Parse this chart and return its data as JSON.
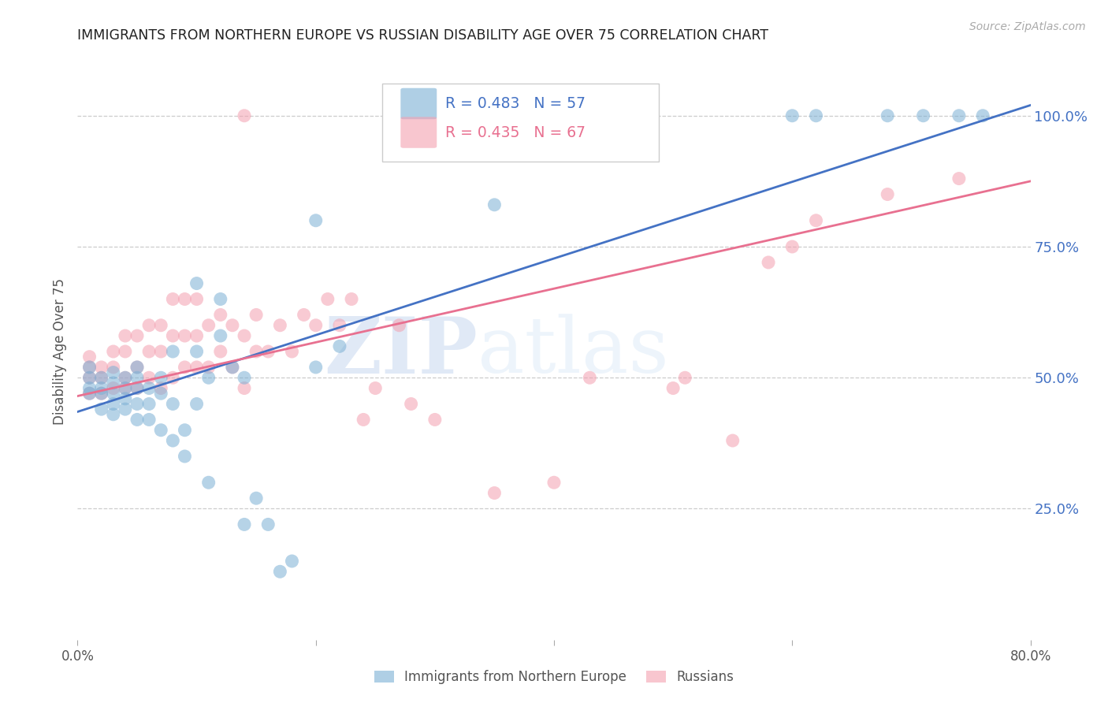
{
  "title": "IMMIGRANTS FROM NORTHERN EUROPE VS RUSSIAN DISABILITY AGE OVER 75 CORRELATION CHART",
  "source": "Source: ZipAtlas.com",
  "ylabel": "Disability Age Over 75",
  "ytick_labels": [
    "100.0%",
    "75.0%",
    "50.0%",
    "25.0%"
  ],
  "ytick_values": [
    1.0,
    0.75,
    0.5,
    0.25
  ],
  "xlim": [
    0.0,
    0.8
  ],
  "ylim": [
    0.0,
    1.1
  ],
  "blue_color": "#7BAFD4",
  "pink_color": "#F4A0B0",
  "blue_line_color": "#4472C4",
  "pink_line_color": "#E87090",
  "R_blue": 0.483,
  "N_blue": 57,
  "R_pink": 0.435,
  "N_pink": 67,
  "legend_label_blue": "Immigrants from Northern Europe",
  "legend_label_pink": "Russians",
  "watermark_zip": "ZIP",
  "watermark_atlas": "atlas",
  "blue_scatter_x": [
    0.01,
    0.01,
    0.01,
    0.01,
    0.02,
    0.02,
    0.02,
    0.02,
    0.03,
    0.03,
    0.03,
    0.03,
    0.03,
    0.04,
    0.04,
    0.04,
    0.04,
    0.05,
    0.05,
    0.05,
    0.05,
    0.05,
    0.06,
    0.06,
    0.06,
    0.07,
    0.07,
    0.07,
    0.08,
    0.08,
    0.08,
    0.09,
    0.09,
    0.1,
    0.1,
    0.1,
    0.11,
    0.11,
    0.12,
    0.12,
    0.13,
    0.14,
    0.14,
    0.15,
    0.16,
    0.17,
    0.18,
    0.2,
    0.2,
    0.22,
    0.35,
    0.6,
    0.62,
    0.68,
    0.71,
    0.74,
    0.76
  ],
  "blue_scatter_y": [
    0.47,
    0.48,
    0.5,
    0.52,
    0.44,
    0.47,
    0.48,
    0.5,
    0.43,
    0.45,
    0.47,
    0.49,
    0.51,
    0.44,
    0.46,
    0.48,
    0.5,
    0.42,
    0.45,
    0.48,
    0.5,
    0.52,
    0.42,
    0.45,
    0.48,
    0.4,
    0.47,
    0.5,
    0.38,
    0.45,
    0.55,
    0.35,
    0.4,
    0.45,
    0.55,
    0.68,
    0.3,
    0.5,
    0.58,
    0.65,
    0.52,
    0.22,
    0.5,
    0.27,
    0.22,
    0.13,
    0.15,
    0.52,
    0.8,
    0.56,
    0.83,
    1.0,
    1.0,
    1.0,
    1.0,
    1.0,
    1.0
  ],
  "pink_scatter_x": [
    0.01,
    0.01,
    0.01,
    0.01,
    0.02,
    0.02,
    0.02,
    0.03,
    0.03,
    0.03,
    0.04,
    0.04,
    0.04,
    0.04,
    0.05,
    0.05,
    0.05,
    0.06,
    0.06,
    0.06,
    0.07,
    0.07,
    0.07,
    0.08,
    0.08,
    0.08,
    0.09,
    0.09,
    0.09,
    0.1,
    0.1,
    0.1,
    0.11,
    0.11,
    0.12,
    0.12,
    0.13,
    0.13,
    0.14,
    0.14,
    0.15,
    0.15,
    0.16,
    0.17,
    0.18,
    0.19,
    0.2,
    0.21,
    0.22,
    0.23,
    0.24,
    0.25,
    0.27,
    0.28,
    0.3,
    0.35,
    0.4,
    0.43,
    0.5,
    0.51,
    0.55,
    0.58,
    0.6,
    0.62,
    0.68,
    0.74,
    0.14
  ],
  "pink_scatter_y": [
    0.47,
    0.5,
    0.52,
    0.54,
    0.47,
    0.5,
    0.52,
    0.48,
    0.52,
    0.55,
    0.48,
    0.5,
    0.55,
    0.58,
    0.48,
    0.52,
    0.58,
    0.5,
    0.55,
    0.6,
    0.48,
    0.55,
    0.6,
    0.5,
    0.58,
    0.65,
    0.52,
    0.58,
    0.65,
    0.52,
    0.58,
    0.65,
    0.52,
    0.6,
    0.55,
    0.62,
    0.52,
    0.6,
    0.48,
    0.58,
    0.55,
    0.62,
    0.55,
    0.6,
    0.55,
    0.62,
    0.6,
    0.65,
    0.6,
    0.65,
    0.42,
    0.48,
    0.6,
    0.45,
    0.42,
    0.28,
    0.3,
    0.5,
    0.48,
    0.5,
    0.38,
    0.72,
    0.75,
    0.8,
    0.85,
    0.88,
    1.0
  ]
}
